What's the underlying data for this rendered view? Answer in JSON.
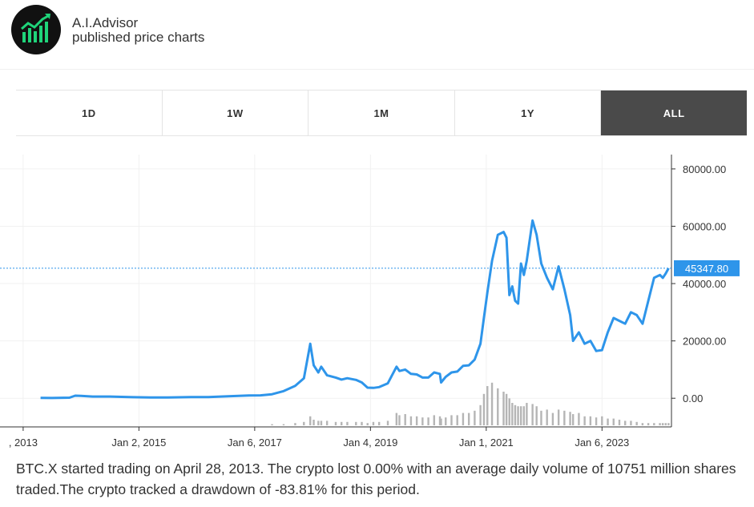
{
  "header": {
    "brand_name": "A.I.Advisor",
    "brand_sub": "published price charts",
    "logo_icon": "rising-bar-chart-icon",
    "logo_color": "#1fd47a"
  },
  "tabs": [
    {
      "label": "1D",
      "active": false
    },
    {
      "label": "1W",
      "active": false
    },
    {
      "label": "1M",
      "active": false
    },
    {
      "label": "1Y",
      "active": false
    },
    {
      "label": "ALL",
      "active": true
    }
  ],
  "chart_data": {
    "type": "line",
    "series": [
      {
        "x": [
          2013.3,
          2013.5,
          2013.8,
          2013.9,
          2014.0,
          2014.2,
          2014.5,
          2014.9,
          2015.2,
          2015.5,
          2015.9,
          2016.2,
          2016.5,
          2016.9,
          2017.1,
          2017.3,
          2017.5,
          2017.7,
          2017.85,
          2017.96,
          2018.02,
          2018.1,
          2018.15,
          2018.25,
          2018.4,
          2018.5,
          2018.6,
          2018.75,
          2018.85,
          2018.95,
          2019.05,
          2019.15,
          2019.3,
          2019.45,
          2019.5,
          2019.6,
          2019.7,
          2019.8,
          2019.9,
          2020.0,
          2020.1,
          2020.2,
          2020.22,
          2020.3,
          2020.4,
          2020.5,
          2020.6,
          2020.7,
          2020.8,
          2020.9,
          2020.96,
          2021.02,
          2021.1,
          2021.2,
          2021.3,
          2021.35,
          2021.4,
          2021.45,
          2021.5,
          2021.55,
          2021.6,
          2021.65,
          2021.7,
          2021.8,
          2021.87,
          2021.95,
          2022.05,
          2022.15,
          2022.25,
          2022.35,
          2022.45,
          2022.5,
          2022.6,
          2022.7,
          2022.8,
          2022.9,
          2023.0,
          2023.1,
          2023.2,
          2023.3,
          2023.4,
          2023.5,
          2023.6,
          2023.7,
          2023.8,
          2023.9,
          2024.0,
          2024.05,
          2024.1,
          2024.15
        ],
        "y": [
          130,
          100,
          200,
          900,
          800,
          600,
          600,
          380,
          260,
          250,
          420,
          420,
          650,
          960,
          1000,
          1400,
          2500,
          4300,
          7000,
          19000,
          11500,
          9000,
          11000,
          8000,
          7200,
          6500,
          7000,
          6400,
          5500,
          3700,
          3600,
          3900,
          5200,
          11000,
          9500,
          10000,
          8500,
          8300,
          7200,
          7200,
          9000,
          8500,
          5500,
          7500,
          9000,
          9300,
          11300,
          11500,
          13500,
          19000,
          28000,
          37000,
          48000,
          57000,
          58000,
          56000,
          36000,
          39000,
          34000,
          33000,
          47000,
          43000,
          48000,
          62000,
          57000,
          47000,
          42000,
          38000,
          46000,
          38000,
          29000,
          20000,
          23000,
          19000,
          20000,
          16500,
          16800,
          23000,
          28000,
          27000,
          26000,
          30000,
          29000,
          26000,
          34000,
          42000,
          43000,
          42000,
          43500,
          45347.8
        ]
      }
    ],
    "volume": [
      0,
      0,
      0,
      0,
      0,
      0,
      0,
      0,
      0,
      0,
      0,
      0,
      0,
      0,
      0,
      1,
      1,
      2,
      3,
      8,
      5,
      4,
      4,
      4,
      3,
      3,
      3,
      3,
      3,
      2,
      3,
      3,
      4,
      11,
      9,
      10,
      8,
      8,
      7,
      7,
      9,
      8,
      6,
      7,
      9,
      9,
      11,
      11,
      13,
      18,
      28,
      35,
      38,
      33,
      30,
      28,
      24,
      20,
      18,
      17,
      17,
      17,
      20,
      19,
      17,
      13,
      14,
      11,
      14,
      13,
      12,
      10,
      11,
      8,
      8,
      7,
      8,
      6,
      6,
      5,
      4,
      4,
      3,
      2,
      2,
      2,
      2,
      2,
      2,
      2
    ],
    "x_tick_labels": [
      {
        "label": ", 2013",
        "x": 2013.0
      },
      {
        "label": "Jan 2, 2015",
        "x": 2015.0
      },
      {
        "label": "Jan 6, 2017",
        "x": 2017.0
      },
      {
        "label": "Jan 4, 2019",
        "x": 2019.0
      },
      {
        "label": "Jan 1, 2021",
        "x": 2021.0
      },
      {
        "label": "Jan 6, 2023",
        "x": 2023.0
      }
    ],
    "y_ticks": [
      "80000.00",
      "60000.00",
      "40000.00",
      "20000.00",
      "0.00"
    ],
    "y_tick_values": [
      80000,
      60000,
      40000,
      20000,
      0
    ],
    "last_price": 45347.8,
    "last_price_label": "45347.80",
    "xlim": [
      2012.6,
      2024.2
    ],
    "ylim": [
      -10000,
      85000
    ],
    "line_color": "#2e95ea",
    "volume_color": "#b5b5b5",
    "grid": true
  },
  "description": "BTC.X started trading on April 28, 2013. The crypto lost 0.00% with an average daily volume of 10751 million shares traded.The crypto tracked a drawdown of -83.81% for this period."
}
